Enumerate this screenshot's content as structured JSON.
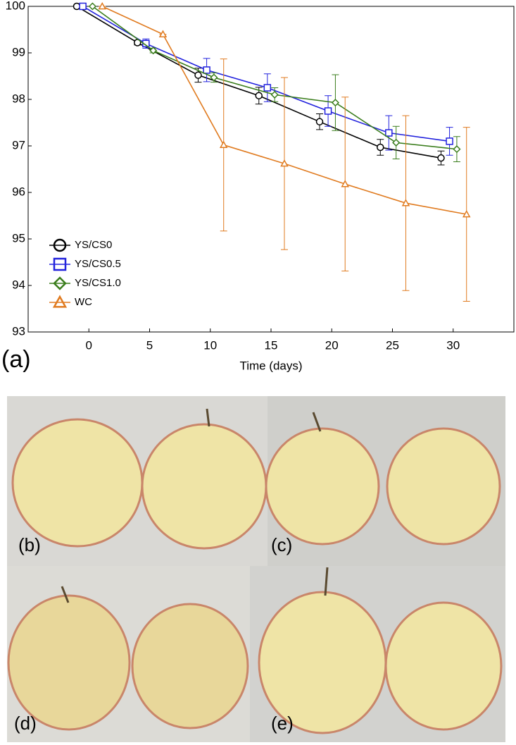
{
  "chart_data": {
    "type": "line",
    "panel_label": "(a)",
    "x_label": "Time (days)",
    "xlim": [
      -5,
      35
    ],
    "xticks": [
      0,
      5,
      10,
      15,
      20,
      25,
      30
    ],
    "ylim": [
      93,
      100
    ],
    "yticks": [
      93,
      94,
      95,
      96,
      97,
      98,
      99,
      100
    ],
    "legend": "lower left",
    "series": [
      {
        "name": "YS/CS0",
        "color": "#000000",
        "marker": "circle",
        "x": [
          -1,
          4,
          9,
          14,
          19,
          24,
          29
        ],
        "values": [
          100,
          99.22,
          98.52,
          98.08,
          97.52,
          96.97,
          96.74
        ],
        "errors": [
          0,
          0.05,
          0.15,
          0.18,
          0.17,
          0.17,
          0.15
        ]
      },
      {
        "name": "YS/CS0.5",
        "color": "#2222dd",
        "marker": "square",
        "x": [
          -0.5,
          4.7,
          9.7,
          14.7,
          19.7,
          24.7,
          29.7
        ],
        "values": [
          100,
          99.2,
          98.63,
          98.25,
          97.75,
          97.28,
          97.1
        ],
        "errors": [
          0,
          0.1,
          0.25,
          0.3,
          0.33,
          0.37,
          0.3
        ]
      },
      {
        "name": "YS/CS1.0",
        "color": "#3a7d1c",
        "marker": "diamond",
        "x": [
          0.3,
          5.3,
          10.3,
          15.3,
          20.3,
          25.3,
          30.3
        ],
        "values": [
          100,
          99.05,
          98.47,
          98.1,
          97.93,
          97.07,
          96.93
        ],
        "errors": [
          0,
          0.05,
          0.1,
          0.15,
          0.6,
          0.35,
          0.27
        ]
      },
      {
        "name": "WC",
        "color": "#e07b20",
        "marker": "triangle",
        "x": [
          1.1,
          6.1,
          11.1,
          16.1,
          21.1,
          26.1,
          31.1
        ],
        "values": [
          100,
          99.4,
          97.02,
          96.62,
          96.18,
          95.77,
          95.53
        ],
        "errors": [
          0,
          0,
          1.85,
          1.85,
          1.87,
          1.88,
          1.87
        ]
      }
    ]
  },
  "panel_labels": [
    "(b)",
    "(c)",
    "(d)",
    "(e)"
  ]
}
